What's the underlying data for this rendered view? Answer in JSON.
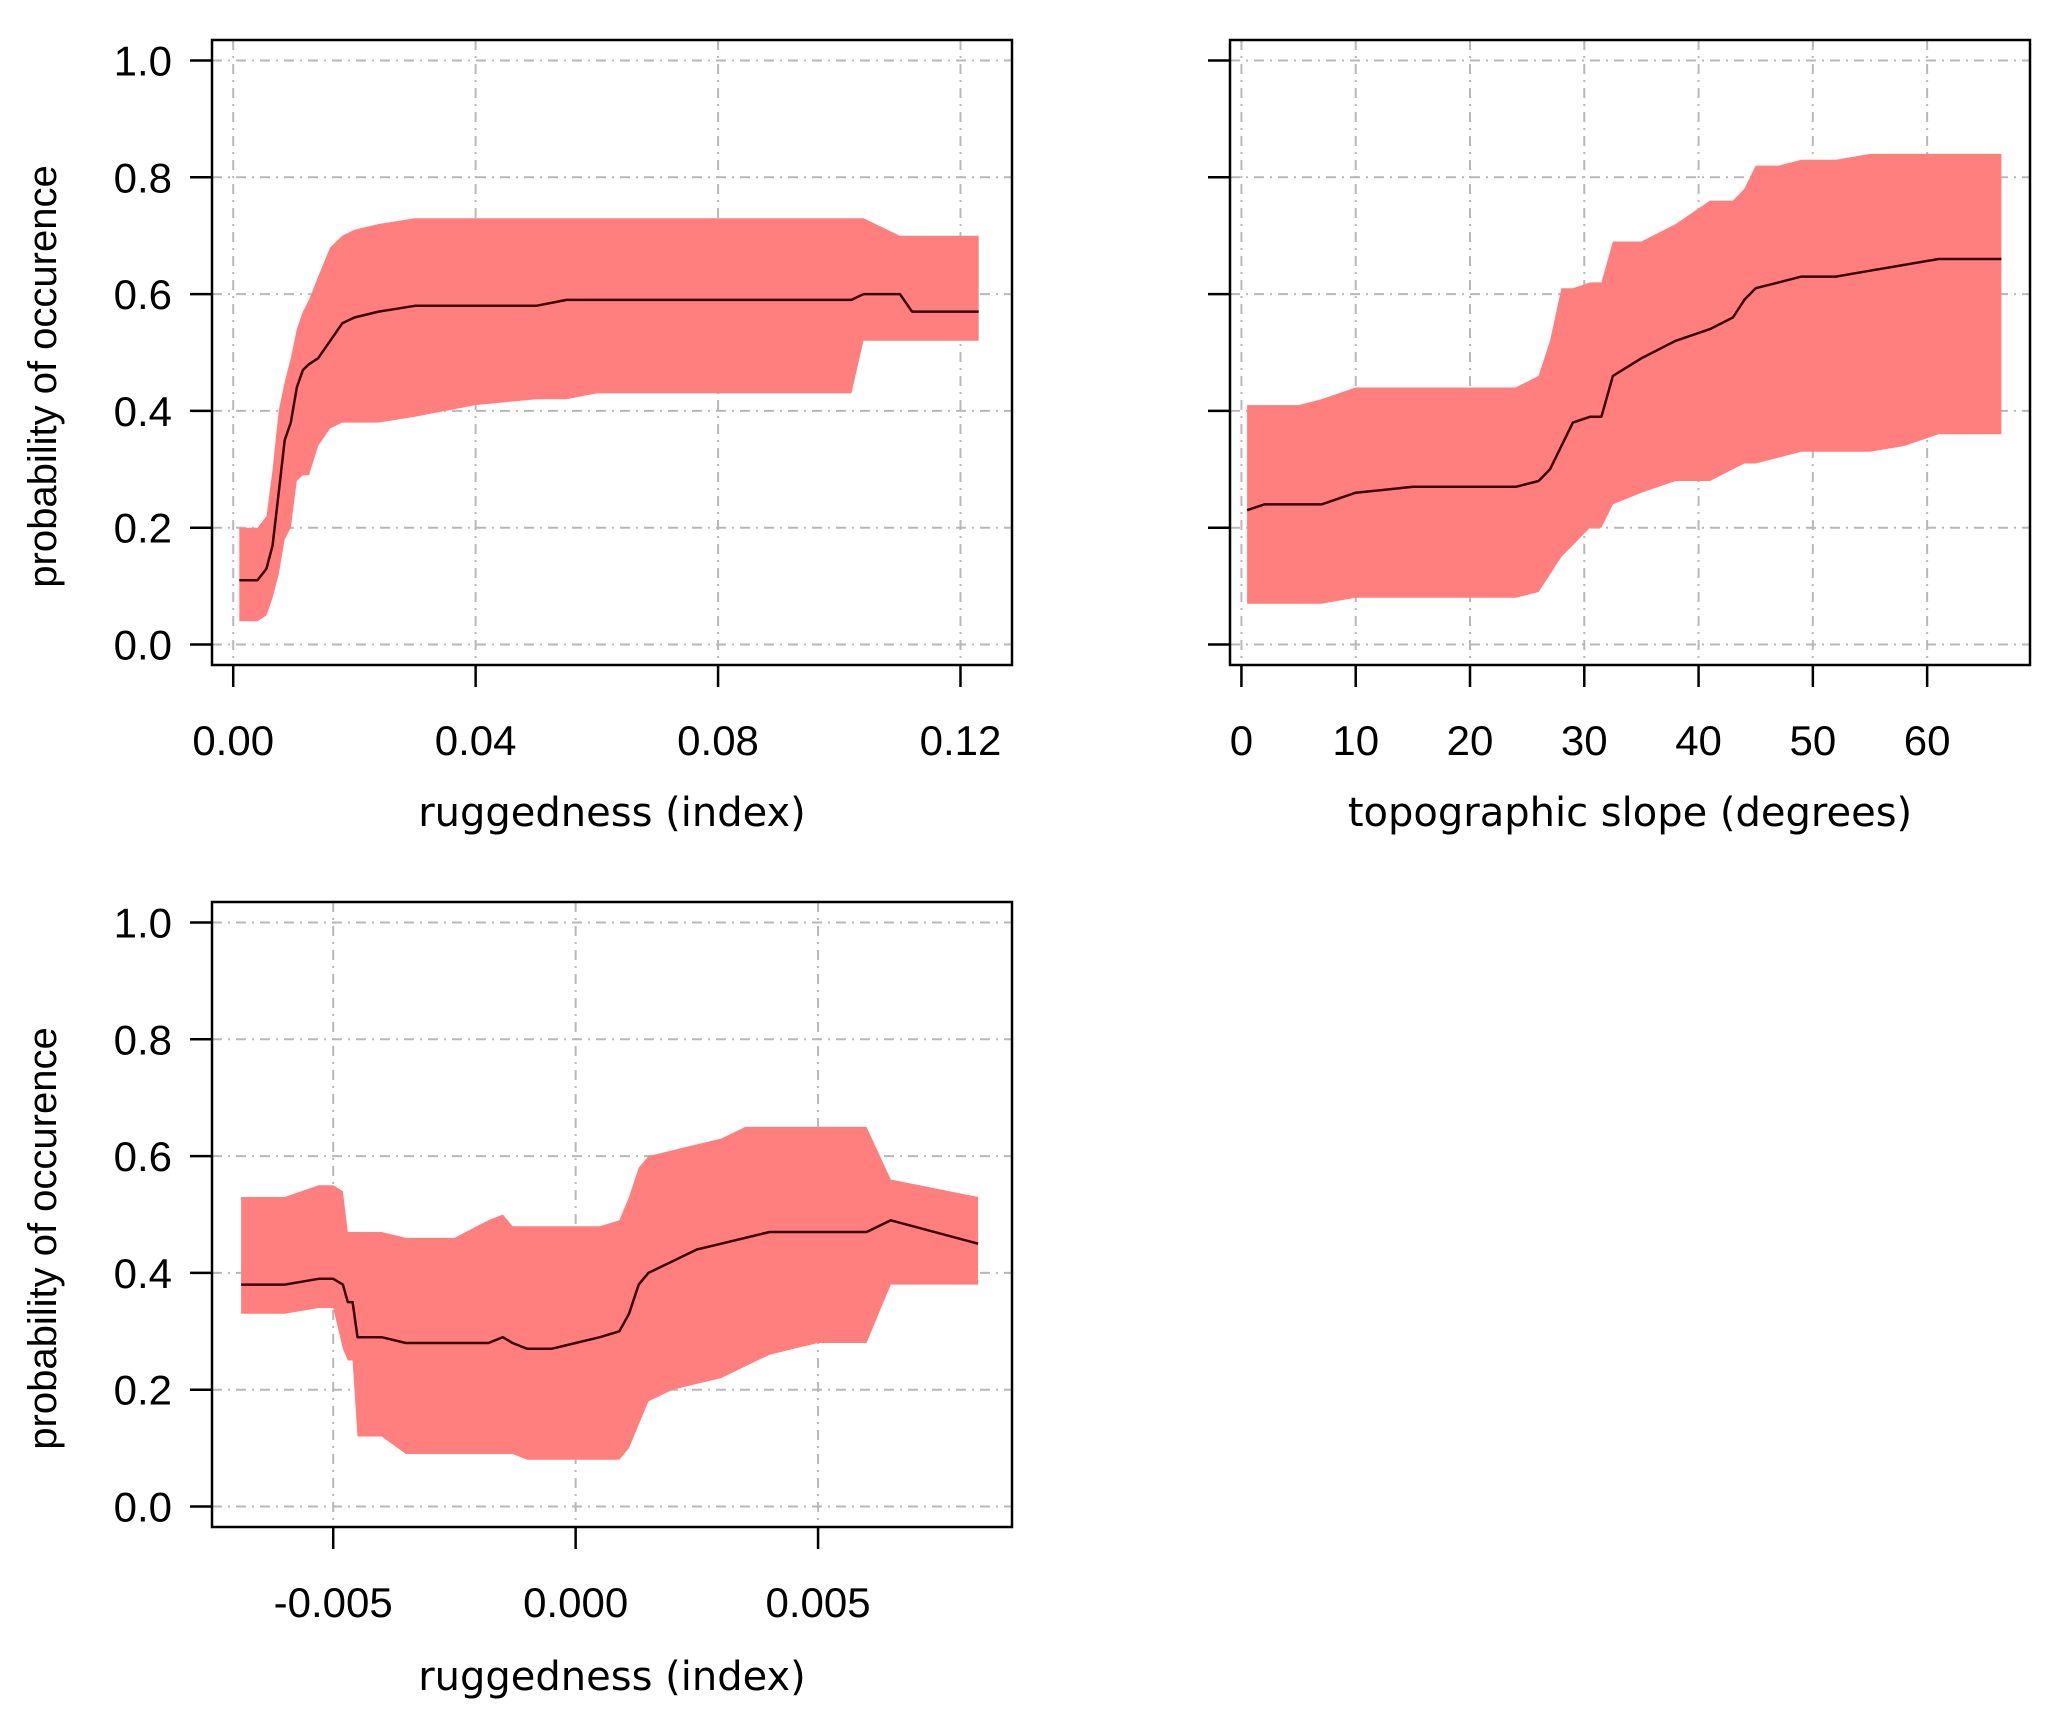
{
  "chart_data": [
    {
      "type": "line",
      "xlabel": "ruggedness (index)",
      "ylabel": "probability of occurence",
      "xlim": [
        -0.0035,
        0.1285
      ],
      "ylim": [
        -0.035,
        1.035
      ],
      "xticks": [
        0.0,
        0.04,
        0.08,
        0.12
      ],
      "xtick_labels": [
        "0.00",
        "0.04",
        "0.08",
        "0.12"
      ],
      "yticks": [
        0.0,
        0.2,
        0.4,
        0.6,
        0.8,
        1.0
      ],
      "ytick_labels": [
        "0.0",
        "0.2",
        "0.4",
        "0.6",
        "0.8",
        "1.0"
      ],
      "grid": true,
      "band_color": "#ff7f7f",
      "line_color": "#3a0000",
      "series": [
        {
          "x": [
            0.001,
            0.004,
            0.0055,
            0.0065,
            0.0075,
            0.0085,
            0.0095,
            0.0105,
            0.0115,
            0.0125,
            0.014,
            0.016,
            0.018,
            0.02,
            0.024,
            0.03,
            0.04,
            0.05,
            0.055,
            0.06,
            0.07,
            0.08,
            0.09,
            0.1,
            0.102,
            0.104,
            0.11,
            0.112,
            0.123
          ],
          "y": [
            0.11,
            0.11,
            0.13,
            0.17,
            0.26,
            0.35,
            0.38,
            0.44,
            0.47,
            0.48,
            0.49,
            0.52,
            0.55,
            0.56,
            0.57,
            0.58,
            0.58,
            0.58,
            0.59,
            0.59,
            0.59,
            0.59,
            0.59,
            0.59,
            0.59,
            0.6,
            0.6,
            0.57,
            0.57
          ],
          "lower": [
            0.04,
            0.04,
            0.05,
            0.08,
            0.12,
            0.18,
            0.2,
            0.28,
            0.29,
            0.29,
            0.34,
            0.37,
            0.38,
            0.38,
            0.38,
            0.39,
            0.41,
            0.42,
            0.42,
            0.43,
            0.43,
            0.43,
            0.43,
            0.43,
            0.43,
            0.52,
            0.52,
            0.52,
            0.52
          ],
          "upper": [
            0.2,
            0.2,
            0.22,
            0.3,
            0.4,
            0.45,
            0.49,
            0.54,
            0.57,
            0.59,
            0.63,
            0.68,
            0.7,
            0.71,
            0.72,
            0.73,
            0.73,
            0.73,
            0.73,
            0.73,
            0.73,
            0.73,
            0.73,
            0.73,
            0.73,
            0.73,
            0.7,
            0.7,
            0.7
          ]
        }
      ]
    },
    {
      "type": "line",
      "xlabel": "topographic slope (degrees)",
      "ylabel": "",
      "xlim": [
        -1.0,
        69.0
      ],
      "ylim": [
        -0.035,
        1.035
      ],
      "xticks": [
        0,
        10,
        20,
        30,
        40,
        50,
        60
      ],
      "xtick_labels": [
        "0",
        "10",
        "20",
        "30",
        "40",
        "50",
        "60"
      ],
      "yticks": [
        0.0,
        0.2,
        0.4,
        0.6,
        0.8,
        1.0
      ],
      "ytick_labels": [],
      "grid": true,
      "band_color": "#ff7f7f",
      "line_color": "#3a0000",
      "series": [
        {
          "x": [
            0.5,
            2,
            5,
            7,
            10,
            15,
            20,
            24,
            26,
            27,
            28,
            29,
            30.5,
            31.5,
            32.5,
            35,
            38,
            41,
            43,
            44,
            45,
            47,
            49,
            52,
            55,
            58,
            61,
            66.5
          ],
          "y": [
            0.23,
            0.24,
            0.24,
            0.24,
            0.26,
            0.27,
            0.27,
            0.27,
            0.28,
            0.3,
            0.34,
            0.38,
            0.39,
            0.39,
            0.46,
            0.49,
            0.52,
            0.54,
            0.56,
            0.59,
            0.61,
            0.62,
            0.63,
            0.63,
            0.64,
            0.65,
            0.66,
            0.66
          ],
          "lower": [
            0.07,
            0.07,
            0.07,
            0.07,
            0.08,
            0.08,
            0.08,
            0.08,
            0.09,
            0.12,
            0.15,
            0.17,
            0.2,
            0.2,
            0.24,
            0.26,
            0.28,
            0.28,
            0.3,
            0.31,
            0.31,
            0.32,
            0.33,
            0.33,
            0.33,
            0.34,
            0.36,
            0.36
          ],
          "upper": [
            0.41,
            0.41,
            0.41,
            0.42,
            0.44,
            0.44,
            0.44,
            0.44,
            0.46,
            0.52,
            0.61,
            0.61,
            0.62,
            0.62,
            0.69,
            0.69,
            0.72,
            0.76,
            0.76,
            0.78,
            0.82,
            0.82,
            0.83,
            0.83,
            0.84,
            0.84,
            0.84,
            0.84
          ]
        }
      ]
    },
    {
      "type": "line",
      "xlabel": "ruggedness (index)",
      "ylabel": "probability of occurence",
      "xlim": [
        -0.0075,
        0.009
      ],
      "ylim": [
        -0.035,
        1.035
      ],
      "xticks": [
        -0.005,
        0.0,
        0.005
      ],
      "xtick_labels": [
        "-0.005",
        "0.000",
        "0.005"
      ],
      "yticks": [
        0.0,
        0.2,
        0.4,
        0.6,
        0.8,
        1.0
      ],
      "ytick_labels": [
        "0.0",
        "0.2",
        "0.4",
        "0.6",
        "0.8",
        "1.0"
      ],
      "grid": true,
      "band_color": "#ff7f7f",
      "line_color": "#3a0000",
      "series": [
        {
          "x": [
            -0.0069,
            -0.006,
            -0.0053,
            -0.005,
            -0.0048,
            -0.0047,
            -0.0046,
            -0.0045,
            -0.004,
            -0.0035,
            -0.0025,
            -0.0018,
            -0.0015,
            -0.0013,
            -0.001,
            -0.0005,
            0.0,
            0.0005,
            0.0009,
            0.0011,
            0.0013,
            0.0015,
            0.002,
            0.0025,
            0.003,
            0.0035,
            0.004,
            0.0045,
            0.005,
            0.0055,
            0.006,
            0.0065,
            0.0083
          ],
          "y": [
            0.38,
            0.38,
            0.39,
            0.39,
            0.38,
            0.35,
            0.35,
            0.29,
            0.29,
            0.28,
            0.28,
            0.28,
            0.29,
            0.28,
            0.27,
            0.27,
            0.28,
            0.29,
            0.3,
            0.33,
            0.38,
            0.4,
            0.42,
            0.44,
            0.45,
            0.46,
            0.47,
            0.47,
            0.47,
            0.47,
            0.47,
            0.49,
            0.45
          ],
          "lower": [
            0.33,
            0.33,
            0.34,
            0.34,
            0.27,
            0.25,
            0.25,
            0.12,
            0.12,
            0.09,
            0.09,
            0.09,
            0.09,
            0.09,
            0.08,
            0.08,
            0.08,
            0.08,
            0.08,
            0.1,
            0.14,
            0.18,
            0.2,
            0.21,
            0.22,
            0.24,
            0.26,
            0.27,
            0.28,
            0.28,
            0.28,
            0.38,
            0.38
          ],
          "upper": [
            0.53,
            0.53,
            0.55,
            0.55,
            0.54,
            0.47,
            0.47,
            0.47,
            0.47,
            0.46,
            0.46,
            0.49,
            0.5,
            0.48,
            0.48,
            0.48,
            0.48,
            0.48,
            0.49,
            0.53,
            0.58,
            0.6,
            0.61,
            0.62,
            0.63,
            0.65,
            0.65,
            0.65,
            0.65,
            0.65,
            0.65,
            0.56,
            0.53
          ]
        }
      ]
    }
  ]
}
